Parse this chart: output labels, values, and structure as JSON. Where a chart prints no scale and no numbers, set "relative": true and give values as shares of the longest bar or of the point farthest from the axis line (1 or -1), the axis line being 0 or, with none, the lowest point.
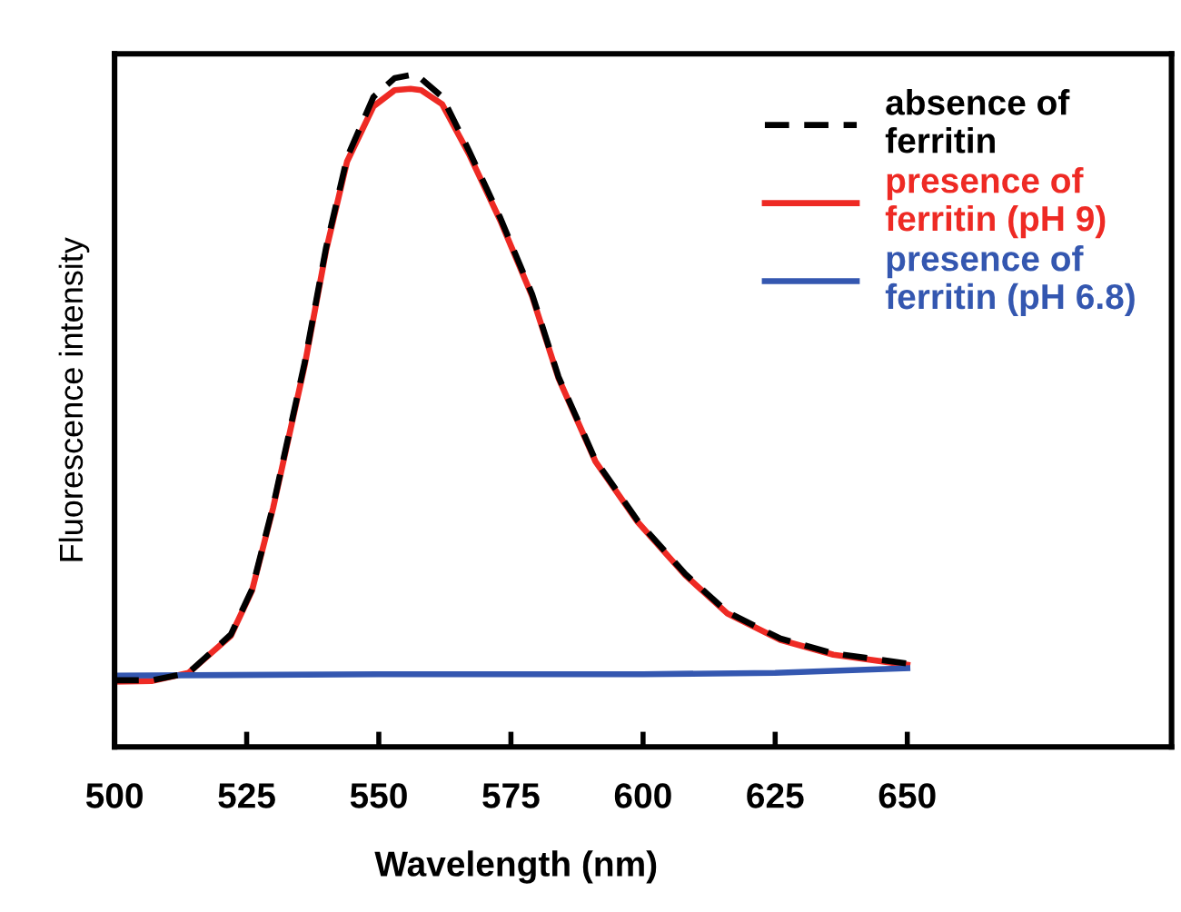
{
  "chart_data": {
    "type": "line",
    "xlabel": "Wavelength (nm)",
    "ylabel": "Fluorescence intensity",
    "relative": true,
    "tick_labels": "x",
    "legend": "top right",
    "xlim": [
      500,
      700
    ],
    "xticks": [
      500,
      525,
      550,
      575,
      600,
      625,
      650
    ],
    "series": [
      {
        "name": "absence of\nferritin",
        "color": "#000000",
        "line_style": "dashed",
        "x": [
          500,
          507,
          514,
          522,
          526,
          530,
          536,
          540,
          544,
          549,
          553,
          557,
          562,
          567,
          573,
          579,
          584,
          591,
          599,
          608,
          616,
          626,
          636,
          650
        ],
        "values": [
          0.099,
          0.099,
          0.11,
          0.167,
          0.234,
          0.358,
          0.572,
          0.741,
          0.876,
          0.966,
          0.994,
          1.0,
          0.966,
          0.887,
          0.786,
          0.673,
          0.55,
          0.426,
          0.336,
          0.257,
          0.2,
          0.161,
          0.139,
          0.124
        ]
      },
      {
        "name": "presence of\nferritin (pH 9)",
        "color": "#ee2a24",
        "line_style": "solid",
        "x": [
          500,
          507,
          514,
          522,
          526,
          530,
          536,
          540,
          544,
          549,
          553,
          556,
          558,
          562,
          567,
          573,
          579,
          584,
          591,
          599,
          608,
          616,
          626,
          636,
          650
        ],
        "values": [
          0.097,
          0.098,
          0.11,
          0.165,
          0.232,
          0.355,
          0.568,
          0.737,
          0.87,
          0.952,
          0.976,
          0.978,
          0.976,
          0.955,
          0.882,
          0.782,
          0.67,
          0.548,
          0.424,
          0.334,
          0.255,
          0.198,
          0.159,
          0.137,
          0.122
        ]
      },
      {
        "name": "presence of\nferritin (pH 6.8)",
        "color": "#3457b0",
        "line_style": "solid",
        "x": [
          500,
          550,
          600,
          625,
          650
        ],
        "values": [
          0.106,
          0.108,
          0.108,
          0.11,
          0.117
        ]
      }
    ]
  }
}
